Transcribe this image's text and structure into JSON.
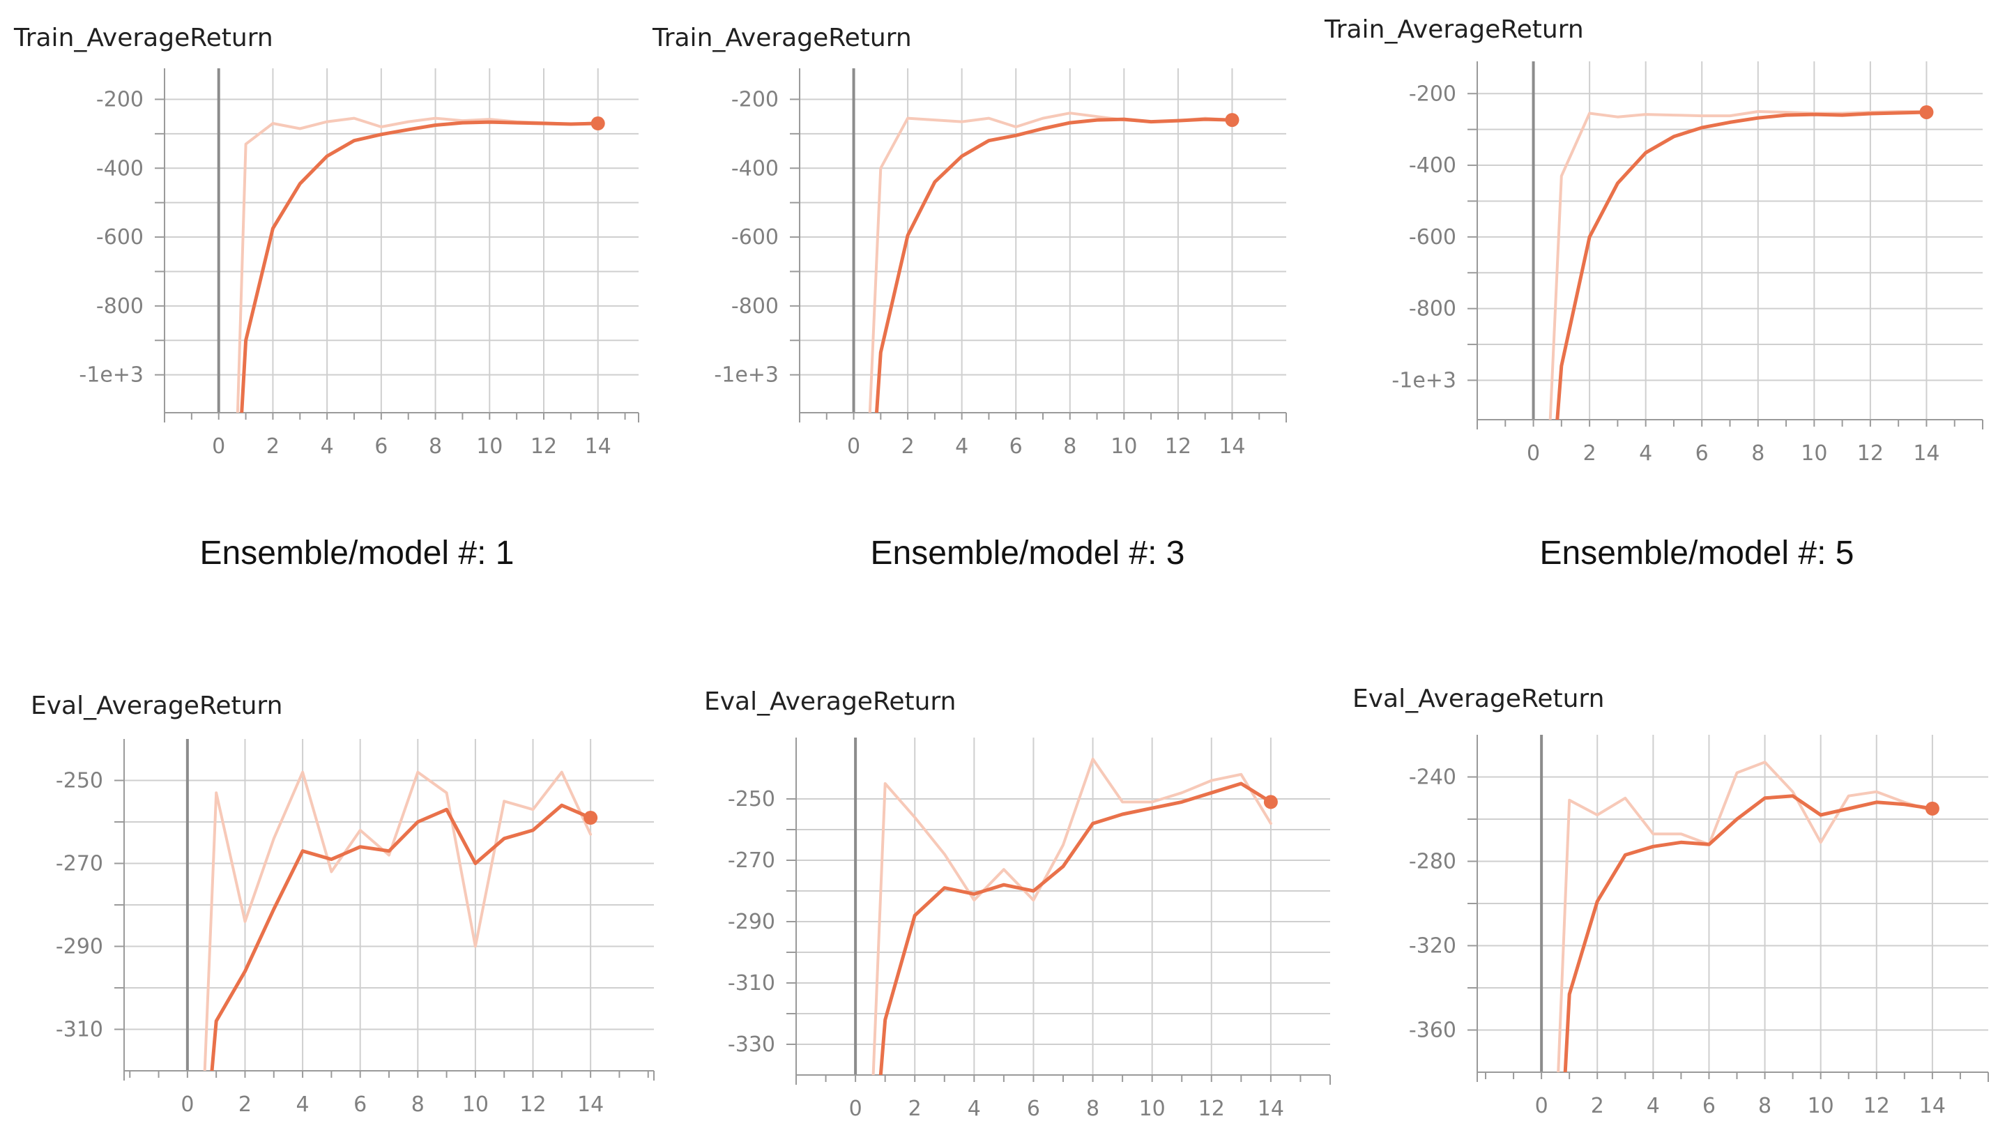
{
  "captions": [
    "Ensemble/model #: 1",
    "Ensemble/model #: 3",
    "Ensemble/model #: 5"
  ],
  "colors": {
    "smoothed": "#e9714a",
    "raw": "#f7c9b8",
    "grid": "#cfcfcf",
    "axis": "#9a9a9a",
    "zero_line": "#8c8c8c",
    "tick_text": "#808080"
  },
  "chart_data": [
    {
      "type": "line",
      "title": "Train_AverageReturn",
      "xlim": [
        -2,
        15.5
      ],
      "ylim": [
        -1110,
        -110
      ],
      "xticks": [
        0,
        2,
        4,
        6,
        8,
        10,
        12,
        14
      ],
      "xtick_labels": [
        "0",
        "2",
        "4",
        "6",
        "8",
        "10",
        "12",
        "14"
      ],
      "yticks": [
        -200,
        -400,
        -600,
        -800,
        -1000
      ],
      "ytick_labels": [
        "-200",
        "-400",
        "-600",
        "-800",
        "-1e+3"
      ],
      "series": [
        {
          "role": "raw",
          "x": [
            0.7,
            1,
            2,
            3,
            4,
            5,
            6,
            7,
            8,
            9,
            10,
            11,
            12,
            13,
            14
          ],
          "y": [
            -1110,
            -330,
            -270,
            -285,
            -265,
            -255,
            -280,
            -265,
            -255,
            -262,
            -258,
            -265,
            -268,
            -272,
            -268
          ]
        },
        {
          "role": "smoothed",
          "x": [
            0.85,
            1,
            2,
            3,
            4,
            5,
            6,
            7,
            8,
            9,
            10,
            11,
            12,
            13,
            14
          ],
          "y": [
            -1110,
            -900,
            -575,
            -445,
            -365,
            -320,
            -302,
            -288,
            -275,
            -268,
            -266,
            -268,
            -270,
            -272,
            -270
          ]
        }
      ]
    },
    {
      "type": "line",
      "title": "Train_AverageReturn",
      "xlim": [
        -2,
        16
      ],
      "ylim": [
        -1110,
        -110
      ],
      "xticks": [
        0,
        2,
        4,
        6,
        8,
        10,
        12,
        14
      ],
      "xtick_labels": [
        "0",
        "2",
        "4",
        "6",
        "8",
        "10",
        "12",
        "14"
      ],
      "yticks": [
        -200,
        -400,
        -600,
        -800,
        -1000
      ],
      "ytick_labels": [
        "-200",
        "-400",
        "-600",
        "-800",
        "-1e+3"
      ],
      "series": [
        {
          "role": "raw",
          "x": [
            0.6,
            1,
            2,
            3,
            4,
            5,
            6,
            7,
            8,
            9,
            10,
            11,
            12,
            13,
            14
          ],
          "y": [
            -1110,
            -400,
            -255,
            -260,
            -265,
            -255,
            -280,
            -255,
            -240,
            -250,
            -260,
            -265,
            -262,
            -255,
            -260
          ]
        },
        {
          "role": "smoothed",
          "x": [
            0.85,
            1,
            2,
            3,
            4,
            5,
            6,
            7,
            8,
            9,
            10,
            11,
            12,
            13,
            14
          ],
          "y": [
            -1110,
            -935,
            -595,
            -440,
            -365,
            -320,
            -305,
            -285,
            -268,
            -260,
            -258,
            -265,
            -262,
            -258,
            -260
          ]
        }
      ]
    },
    {
      "type": "line",
      "title": "Train_AverageReturn",
      "xlim": [
        -2,
        16
      ],
      "ylim": [
        -1110,
        -110
      ],
      "xticks": [
        0,
        2,
        4,
        6,
        8,
        10,
        12,
        14
      ],
      "xtick_labels": [
        "0",
        "2",
        "4",
        "6",
        "8",
        "10",
        "12",
        "14"
      ],
      "yticks": [
        -200,
        -400,
        -600,
        -800,
        -1000
      ],
      "ytick_labels": [
        "-200",
        "-400",
        "-600",
        "-800",
        "-1e+3"
      ],
      "series": [
        {
          "role": "raw",
          "x": [
            0.6,
            1,
            2,
            3,
            4,
            5,
            6,
            7,
            8,
            9,
            10,
            11,
            12,
            13,
            14
          ],
          "y": [
            -1110,
            -430,
            -255,
            -265,
            -258,
            -260,
            -262,
            -262,
            -250,
            -252,
            -255,
            -255,
            -252,
            -250,
            -250
          ]
        },
        {
          "role": "smoothed",
          "x": [
            0.85,
            1,
            2,
            3,
            4,
            5,
            6,
            7,
            8,
            9,
            10,
            11,
            12,
            13,
            14
          ],
          "y": [
            -1110,
            -960,
            -600,
            -450,
            -365,
            -320,
            -295,
            -280,
            -268,
            -260,
            -258,
            -260,
            -256,
            -254,
            -252
          ]
        }
      ]
    },
    {
      "type": "line",
      "title": "Eval_AverageReturn",
      "xlim": [
        -2.2,
        16.2
      ],
      "ylim": [
        -320,
        -240
      ],
      "xticks": [
        0,
        2,
        4,
        6,
        8,
        10,
        12,
        14
      ],
      "xtick_labels": [
        "0",
        "2",
        "4",
        "6",
        "8",
        "10",
        "12",
        "14"
      ],
      "yticks": [
        -250,
        -270,
        -290,
        -310
      ],
      "ytick_labels": [
        "-250",
        "-270",
        "-290",
        "-310"
      ],
      "series": [
        {
          "role": "raw",
          "x": [
            0.6,
            1,
            2,
            3,
            4,
            5,
            6,
            7,
            8,
            9,
            10,
            11,
            12,
            13,
            14
          ],
          "y": [
            -320,
            -253,
            -284,
            -264,
            -248,
            -272,
            -262,
            -268,
            -248,
            -253,
            -290,
            -255,
            -257,
            -248,
            -263
          ]
        },
        {
          "role": "smoothed",
          "x": [
            0.85,
            1,
            2,
            3,
            4,
            5,
            6,
            7,
            8,
            9,
            10,
            11,
            12,
            13,
            14
          ],
          "y": [
            -320,
            -308,
            -296,
            -281,
            -267,
            -269,
            -266,
            -267,
            -260,
            -257,
            -270,
            -264,
            -262,
            -256,
            -259
          ]
        }
      ]
    },
    {
      "type": "line",
      "title": "Eval_AverageReturn",
      "xlim": [
        -2,
        16
      ],
      "ylim": [
        -340,
        -230
      ],
      "xticks": [
        0,
        2,
        4,
        6,
        8,
        10,
        12,
        14
      ],
      "xtick_labels": [
        "0",
        "2",
        "4",
        "6",
        "8",
        "10",
        "12",
        "14"
      ],
      "yticks": [
        -250,
        -270,
        -290,
        -310,
        -330
      ],
      "ytick_labels": [
        "-250",
        "-270",
        "-290",
        "-310",
        "-330"
      ],
      "series": [
        {
          "role": "raw",
          "x": [
            0.6,
            1,
            2,
            3,
            4,
            5,
            6,
            7,
            8,
            9,
            10,
            11,
            12,
            13,
            14
          ],
          "y": [
            -340,
            -245,
            -256,
            -268,
            -283,
            -273,
            -283,
            -265,
            -237,
            -251,
            -251,
            -248,
            -244,
            -242,
            -258
          ]
        },
        {
          "role": "smoothed",
          "x": [
            0.85,
            1,
            2,
            3,
            4,
            5,
            6,
            7,
            8,
            9,
            10,
            11,
            12,
            13,
            14
          ],
          "y": [
            -340,
            -322,
            -288,
            -279,
            -281,
            -278,
            -280,
            -272,
            -258,
            -255,
            -253,
            -251,
            -248,
            -245,
            -251
          ]
        }
      ]
    },
    {
      "type": "line",
      "title": "Eval_AverageReturn",
      "xlim": [
        -2.3,
        16
      ],
      "ylim": [
        -380,
        -220
      ],
      "xticks": [
        0,
        2,
        4,
        6,
        8,
        10,
        12,
        14
      ],
      "xtick_labels": [
        "0",
        "2",
        "4",
        "6",
        "8",
        "10",
        "12",
        "14"
      ],
      "yticks": [
        -240,
        -280,
        -320,
        -360
      ],
      "ytick_labels": [
        "-240",
        "-280",
        "-320",
        "-360"
      ],
      "series": [
        {
          "role": "raw",
          "x": [
            0.6,
            1,
            2,
            3,
            4,
            5,
            6,
            7,
            8,
            9,
            10,
            11,
            12,
            13,
            14
          ],
          "y": [
            -380,
            -251,
            -258,
            -250,
            -267,
            -267,
            -272,
            -238,
            -233,
            -247,
            -271,
            -249,
            -247,
            -252,
            -256
          ]
        },
        {
          "role": "smoothed",
          "x": [
            0.85,
            1,
            2,
            3,
            4,
            5,
            6,
            7,
            8,
            9,
            10,
            11,
            12,
            13,
            14
          ],
          "y": [
            -380,
            -343,
            -299,
            -277,
            -273,
            -271,
            -272,
            -260,
            -250,
            -249,
            -258,
            -255,
            -252,
            -253,
            -255
          ]
        }
      ]
    }
  ]
}
